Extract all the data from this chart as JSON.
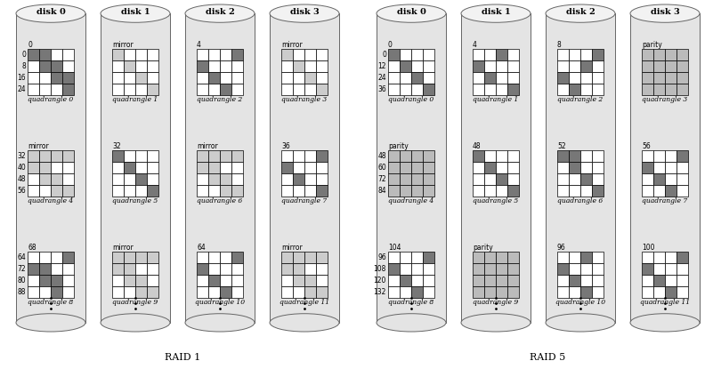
{
  "title_left": "RAID 1",
  "title_right": "RAID 5",
  "disk_labels": [
    "disk 0",
    "disk 1",
    "disk 2",
    "disk 3"
  ],
  "raid1": {
    "disks": [
      {
        "groups": [
          {
            "label": "0",
            "type": "data",
            "rows": [
              [
                1,
                1,
                0,
                0
              ],
              [
                0,
                1,
                1,
                0
              ],
              [
                0,
                0,
                1,
                1
              ],
              [
                0,
                0,
                0,
                1
              ]
            ],
            "qname": "quadrangle 0",
            "row_labels": [
              "0",
              "8",
              "16",
              "24"
            ]
          },
          {
            "label": "mirror",
            "type": "mirror",
            "rows": [
              [
                1,
                1,
                1,
                1
              ],
              [
                1,
                1,
                0,
                0
              ],
              [
                0,
                1,
                1,
                0
              ],
              [
                0,
                0,
                1,
                1
              ]
            ],
            "qname": "quadrangle 4",
            "row_labels": [
              "32",
              "40",
              "48",
              "56"
            ]
          },
          {
            "label": "68",
            "type": "data",
            "rows": [
              [
                0,
                0,
                0,
                1
              ],
              [
                1,
                1,
                0,
                0
              ],
              [
                0,
                1,
                1,
                0
              ],
              [
                0,
                0,
                1,
                0
              ]
            ],
            "qname": "quadrangle 8",
            "row_labels": [
              "64",
              "72",
              "80",
              "88"
            ]
          }
        ]
      },
      {
        "groups": [
          {
            "label": "mirror",
            "type": "mirror",
            "rows": [
              [
                1,
                0,
                0,
                0
              ],
              [
                0,
                1,
                0,
                0
              ],
              [
                0,
                0,
                1,
                0
              ],
              [
                0,
                0,
                0,
                1
              ]
            ],
            "qname": "quadrangle 1",
            "row_labels": []
          },
          {
            "label": "32",
            "type": "data",
            "rows": [
              [
                1,
                0,
                0,
                0
              ],
              [
                0,
                1,
                0,
                0
              ],
              [
                0,
                0,
                1,
                0
              ],
              [
                0,
                0,
                0,
                1
              ]
            ],
            "qname": "quadrangle 5",
            "row_labels": []
          },
          {
            "label": "mirror",
            "type": "mirror",
            "rows": [
              [
                1,
                1,
                1,
                1
              ],
              [
                1,
                1,
                0,
                0
              ],
              [
                0,
                1,
                1,
                0
              ],
              [
                0,
                0,
                1,
                1
              ]
            ],
            "qname": "quadrangle 9",
            "row_labels": []
          }
        ]
      },
      {
        "groups": [
          {
            "label": "4",
            "type": "data",
            "rows": [
              [
                0,
                0,
                0,
                1
              ],
              [
                1,
                0,
                0,
                0
              ],
              [
                0,
                1,
                0,
                0
              ],
              [
                0,
                0,
                1,
                0
              ]
            ],
            "qname": "quadrangle 2",
            "row_labels": []
          },
          {
            "label": "mirror",
            "type": "mirror",
            "rows": [
              [
                1,
                1,
                1,
                1
              ],
              [
                1,
                1,
                0,
                0
              ],
              [
                0,
                1,
                1,
                0
              ],
              [
                0,
                0,
                1,
                1
              ]
            ],
            "qname": "quadrangle 6",
            "row_labels": []
          },
          {
            "label": "64",
            "type": "data",
            "rows": [
              [
                0,
                0,
                0,
                1
              ],
              [
                1,
                0,
                0,
                0
              ],
              [
                0,
                1,
                0,
                0
              ],
              [
                0,
                0,
                1,
                0
              ]
            ],
            "qname": "quadrangle 10",
            "row_labels": []
          }
        ]
      },
      {
        "groups": [
          {
            "label": "mirror",
            "type": "mirror",
            "rows": [
              [
                1,
                0,
                0,
                0
              ],
              [
                0,
                1,
                0,
                0
              ],
              [
                0,
                0,
                1,
                0
              ],
              [
                0,
                0,
                0,
                1
              ]
            ],
            "qname": "quadrangle 3",
            "row_labels": []
          },
          {
            "label": "36",
            "type": "data",
            "rows": [
              [
                0,
                0,
                0,
                1
              ],
              [
                1,
                0,
                0,
                0
              ],
              [
                0,
                1,
                0,
                0
              ],
              [
                0,
                0,
                0,
                1
              ]
            ],
            "qname": "quadrangle 7",
            "row_labels": []
          },
          {
            "label": "mirror",
            "type": "mirror",
            "rows": [
              [
                1,
                1,
                1,
                1
              ],
              [
                1,
                1,
                0,
                0
              ],
              [
                0,
                1,
                1,
                0
              ],
              [
                0,
                0,
                1,
                1
              ]
            ],
            "qname": "quadrangle 11",
            "row_labels": []
          }
        ]
      }
    ]
  },
  "raid5": {
    "disks": [
      {
        "groups": [
          {
            "label": "0",
            "type": "data",
            "rows": [
              [
                1,
                0,
                0,
                0
              ],
              [
                0,
                1,
                0,
                0
              ],
              [
                0,
                0,
                1,
                0
              ],
              [
                0,
                0,
                0,
                1
              ]
            ],
            "qname": "quadrangle 0",
            "row_labels": [
              "0",
              "12",
              "24",
              "36"
            ]
          },
          {
            "label": "parity",
            "type": "parity",
            "rows": [
              [
                1,
                1,
                1,
                1
              ],
              [
                1,
                1,
                1,
                1
              ],
              [
                1,
                1,
                1,
                1
              ],
              [
                1,
                1,
                1,
                1
              ]
            ],
            "qname": "quadrangle 4",
            "row_labels": [
              "48",
              "60",
              "72",
              "84"
            ]
          },
          {
            "label": "104",
            "type": "data",
            "rows": [
              [
                0,
                0,
                0,
                1
              ],
              [
                1,
                0,
                0,
                0
              ],
              [
                0,
                1,
                0,
                0
              ],
              [
                0,
                0,
                1,
                0
              ]
            ],
            "qname": "quadrangle 8",
            "row_labels": [
              "96",
              "108",
              "120",
              "132"
            ]
          }
        ]
      },
      {
        "groups": [
          {
            "label": "4",
            "type": "data",
            "rows": [
              [
                0,
                0,
                1,
                0
              ],
              [
                1,
                0,
                0,
                0
              ],
              [
                0,
                1,
                0,
                0
              ],
              [
                0,
                0,
                0,
                1
              ]
            ],
            "qname": "quadrangle 1",
            "row_labels": []
          },
          {
            "label": "48",
            "type": "data",
            "rows": [
              [
                1,
                0,
                0,
                0
              ],
              [
                0,
                1,
                0,
                0
              ],
              [
                0,
                0,
                1,
                0
              ],
              [
                0,
                0,
                0,
                1
              ]
            ],
            "qname": "quadrangle 5",
            "row_labels": []
          },
          {
            "label": "parity",
            "type": "parity",
            "rows": [
              [
                1,
                1,
                1,
                1
              ],
              [
                1,
                1,
                1,
                1
              ],
              [
                1,
                1,
                1,
                1
              ],
              [
                1,
                1,
                1,
                1
              ]
            ],
            "qname": "quadrangle 9",
            "row_labels": []
          }
        ]
      },
      {
        "groups": [
          {
            "label": "8",
            "type": "data",
            "rows": [
              [
                0,
                0,
                0,
                1
              ],
              [
                0,
                0,
                1,
                0
              ],
              [
                1,
                0,
                0,
                0
              ],
              [
                0,
                1,
                0,
                0
              ]
            ],
            "qname": "quadrangle 2",
            "row_labels": []
          },
          {
            "label": "52",
            "type": "data",
            "rows": [
              [
                1,
                1,
                0,
                0
              ],
              [
                0,
                1,
                0,
                0
              ],
              [
                0,
                0,
                1,
                0
              ],
              [
                0,
                0,
                0,
                1
              ]
            ],
            "qname": "quadrangle 6",
            "row_labels": []
          },
          {
            "label": "96",
            "type": "data",
            "rows": [
              [
                0,
                0,
                1,
                0
              ],
              [
                1,
                0,
                0,
                0
              ],
              [
                0,
                1,
                0,
                0
              ],
              [
                0,
                0,
                1,
                0
              ]
            ],
            "qname": "quadrangle 10",
            "row_labels": []
          }
        ]
      },
      {
        "groups": [
          {
            "label": "parity",
            "type": "parity",
            "rows": [
              [
                1,
                1,
                1,
                1
              ],
              [
                1,
                1,
                1,
                1
              ],
              [
                1,
                1,
                1,
                1
              ],
              [
                1,
                1,
                1,
                1
              ]
            ],
            "qname": "quadrangle 3",
            "row_labels": []
          },
          {
            "label": "56",
            "type": "data",
            "rows": [
              [
                0,
                0,
                0,
                1
              ],
              [
                1,
                0,
                0,
                0
              ],
              [
                0,
                1,
                0,
                0
              ],
              [
                0,
                0,
                1,
                0
              ]
            ],
            "qname": "quadrangle 7",
            "row_labels": []
          },
          {
            "label": "100",
            "type": "data",
            "rows": [
              [
                0,
                0,
                0,
                1
              ],
              [
                1,
                0,
                0,
                0
              ],
              [
                0,
                1,
                0,
                0
              ],
              [
                0,
                0,
                1,
                0
              ]
            ],
            "qname": "quadrangle 11",
            "row_labels": []
          }
        ]
      }
    ]
  },
  "c_data_dark": "#777777",
  "c_data_off": "#ffffff",
  "c_mirror_on": "#cccccc",
  "c_mirror_off": "#ffffff",
  "c_parity": "#bbbbbb",
  "c_cyl_body": "#e4e4e4",
  "c_cyl_top": "#f2f2f2",
  "c_cyl_edge": "#666666"
}
